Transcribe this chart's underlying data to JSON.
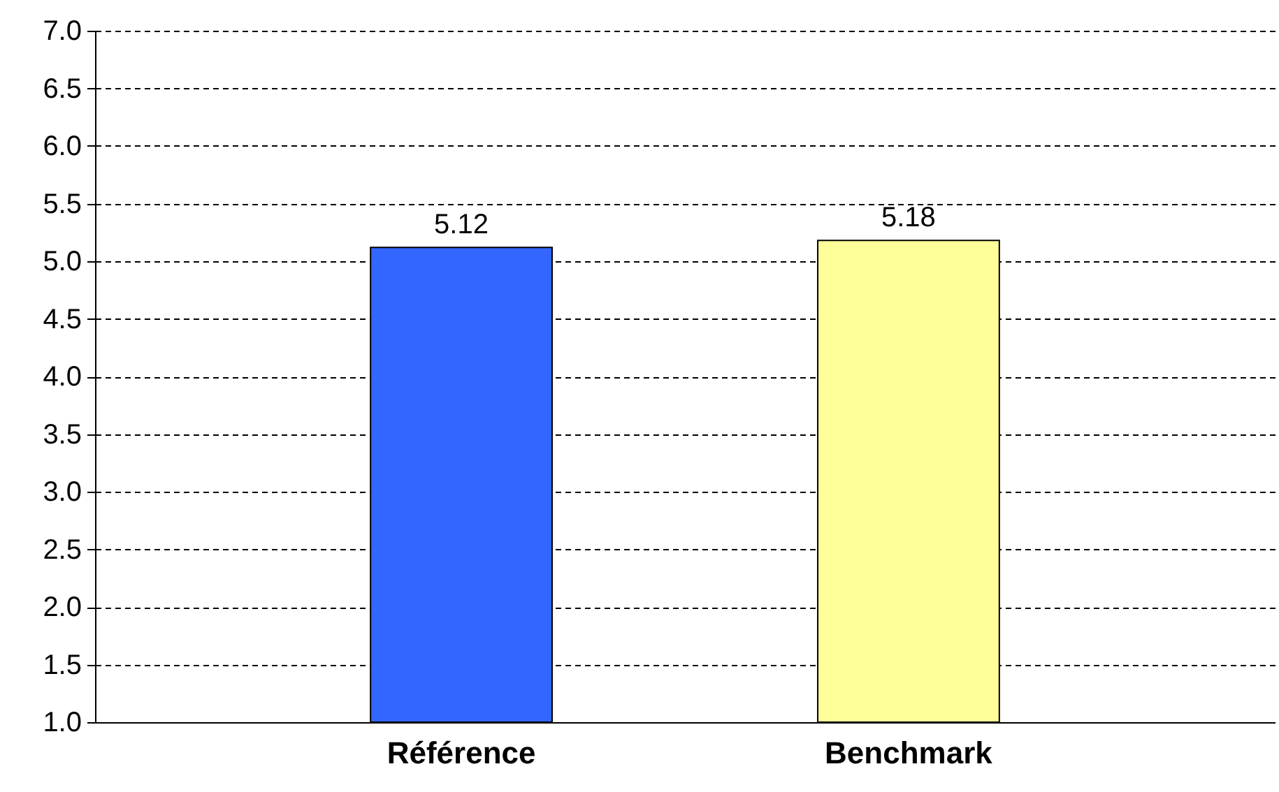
{
  "chart_data": {
    "type": "bar",
    "categories": [
      "Référence",
      "Benchmark"
    ],
    "values": [
      5.12,
      5.18
    ],
    "colors": [
      "#3366ff",
      "#ffff99"
    ],
    "ylim": [
      1.0,
      7.0
    ],
    "yticks": [
      {
        "value": 1,
        "label": "1.0"
      },
      {
        "value": 1.5,
        "label": "1.5"
      },
      {
        "value": 2,
        "label": "2.0"
      },
      {
        "value": 2.5,
        "label": "2.5"
      },
      {
        "value": 3,
        "label": "3.0"
      },
      {
        "value": 3.5,
        "label": "3.5"
      },
      {
        "value": 4,
        "label": "4.0"
      },
      {
        "value": 4.5,
        "label": "4.5"
      },
      {
        "value": 5,
        "label": "5.0"
      },
      {
        "value": 5.5,
        "label": "5.5"
      },
      {
        "value": 6,
        "label": "6.0"
      },
      {
        "value": 6.5,
        "label": "6.5"
      },
      {
        "value": 7,
        "label": "7.0"
      }
    ],
    "grid": "y",
    "data_labels": true
  }
}
